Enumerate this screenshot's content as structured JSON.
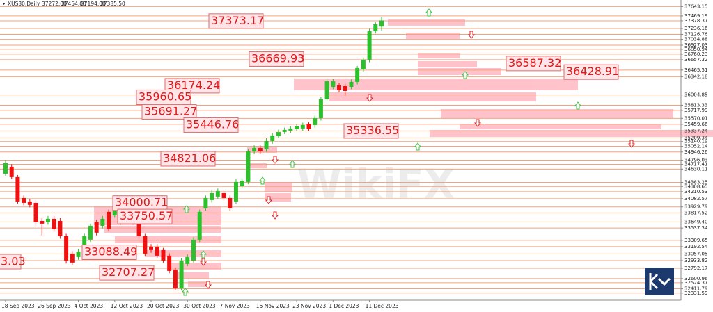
{
  "chart_data": {
    "type": "candlestick",
    "header": {
      "symbol": "XUS30,Daily",
      "ohlc": [
        "37272.00",
        "37454.00",
        "37194.00",
        "37385.50"
      ]
    },
    "watermark": "WikiFX",
    "categories": [
      "18 Sep 2023",
      null,
      null,
      null,
      null,
      null,
      "26 Sep 2023",
      null,
      null,
      null,
      null,
      null,
      "4 Oct 2023",
      null,
      null,
      null,
      null,
      null,
      "12 Oct 2023",
      null,
      null,
      null,
      null,
      null,
      "20 Oct 2023",
      null,
      null,
      null,
      null,
      null,
      "30 Oct 2023",
      null,
      null,
      null,
      null,
      null,
      "7 Nov 2023",
      null,
      null,
      null,
      null,
      null,
      "15 Nov 2023",
      null,
      null,
      null,
      null,
      null,
      "23 Nov 2023",
      null,
      null,
      null,
      null,
      null,
      "1 Dec 2023",
      null,
      null,
      null,
      null,
      null,
      "11 Dec 2023",
      null,
      null
    ],
    "open": [
      34545,
      34674,
      34481,
      34094,
      34030,
      34004,
      33669,
      33644,
      33708,
      33669,
      33386,
      33064,
      33000,
      33064,
      33322,
      33644,
      33579,
      33837,
      33772,
      33644,
      33966,
      33927,
      33708,
      33386,
      33193,
      33193,
      33129,
      33026,
      32768,
      32420,
      32871,
      32935,
      33322,
      33901,
      34056,
      34120,
      34184,
      34094,
      34030,
      34313,
      34391,
      34957,
      35021,
      34996,
      35150,
      35240,
      35318,
      35343,
      35369,
      35382,
      35472,
      35446,
      35575,
      35923,
      36154,
      36180,
      36167,
      36154,
      36245,
      36476,
      36657,
      37185,
      37272
    ],
    "high": [
      34800,
      34720,
      34520,
      34140,
      34080,
      34050,
      33720,
      33760,
      33760,
      33720,
      33430,
      33110,
      33150,
      33430,
      33620,
      33690,
      33760,
      33880,
      34010,
      34080,
      34010,
      33970,
      33750,
      33430,
      33240,
      33240,
      33170,
      33070,
      32810,
      32980,
      33050,
      33370,
      33880,
      34140,
      34230,
      34270,
      34230,
      34140,
      34440,
      34460,
      35000,
      35070,
      35070,
      35200,
      35300,
      35360,
      35400,
      35420,
      35460,
      35490,
      35510,
      35620,
      35970,
      36300,
      36300,
      36220,
      36210,
      36290,
      36540,
      36700,
      37230,
      37350,
      37454
    ],
    "low": [
      34500,
      34440,
      33990,
      33960,
      33920,
      33580,
      33400,
      33600,
      33470,
      33340,
      32880,
      32850,
      32950,
      33020,
      33280,
      33400,
      33530,
      33470,
      33730,
      33600,
      33860,
      33600,
      33340,
      33020,
      33080,
      32980,
      32890,
      32700,
      32380,
      32380,
      32830,
      32890,
      33280,
      33860,
      34010,
      34080,
      34050,
      33860,
      33990,
      34270,
      34350,
      34910,
      34910,
      34950,
      35100,
      35200,
      35280,
      35300,
      35330,
      35340,
      35330,
      35400,
      35530,
      35880,
      36110,
      36050,
      35990,
      36110,
      36200,
      36430,
      36610,
      37140,
      37194
    ],
    "close": [
      34738,
      34481,
      34030,
      34004,
      33966,
      33644,
      33618,
      33708,
      33515,
      33386,
      32935,
      32897,
      33103,
      33386,
      33579,
      33451,
      33708,
      33515,
      33966,
      34030,
      33901,
      33644,
      33386,
      33064,
      33129,
      33026,
      32935,
      32742,
      32420,
      32935,
      33000,
      33322,
      33837,
      34094,
      34184,
      34223,
      34094,
      33901,
      34391,
      34416,
      34957,
      35021,
      34957,
      35150,
      35253,
      35318,
      35356,
      35382,
      35421,
      35446,
      35369,
      35575,
      35923,
      36258,
      36258,
      36090,
      36077,
      36245,
      36502,
      36657,
      37185,
      37313,
      37385.5
    ],
    "up_color": "#2cc02c",
    "down_color": "#f01010",
    "grid_color": "#f4a27c",
    "ylim": [
      32200,
      37764
    ],
    "yticks": [
      37643.15,
      37469.19,
      37378.37,
      37236.16,
      37126.76,
      37034.88,
      36927.03,
      36850.94,
      36760.23,
      36657.32,
      36465.51,
      36342.18,
      36004.85,
      35813.33,
      35717.99,
      35570.01,
      35459.66,
      35337.24,
      35209.34,
      35140.19,
      35052.14,
      34946.26,
      34796.03,
      34717.41,
      34630.11,
      34383.25,
      34308.65,
      34210.53,
      34082.57,
      33929.79,
      33817.52,
      {
        "value": 33649.4,
        "label": "33649.40"
      },
      33537.34,
      33309.65,
      33192.54,
      33057.05,
      32933.82,
      32792.17,
      32600.96,
      32524.37,
      32411.79,
      32331.59
    ],
    "annotations": [
      37373.17,
      36669.93,
      36587.32,
      36428.91,
      36174.24,
      35960.65,
      35691.27,
      35446.76,
      35336.55,
      34821.06,
      34000.71,
      33750.57,
      33088.49,
      32707.27
    ],
    "cut_label": "3.03",
    "grid": true
  }
}
